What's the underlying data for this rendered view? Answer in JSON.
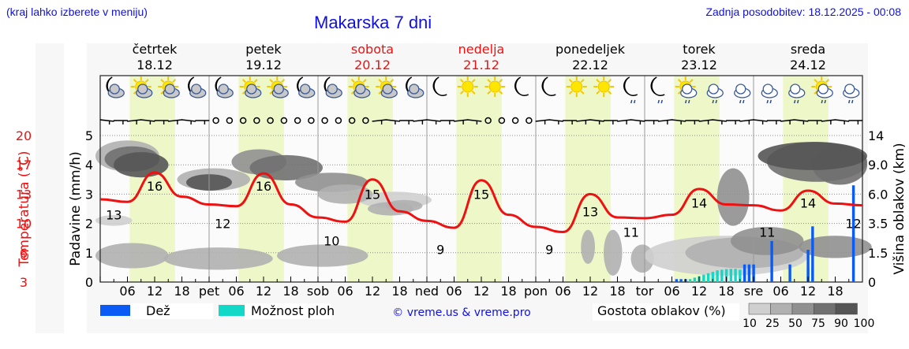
{
  "header": {
    "location_hint": "(kraj lahko izberete v meniju)",
    "title": "Makarska 7 dni",
    "last_update": "Zadnja posodobitev: 18.12.2025 - 00:08"
  },
  "days": [
    {
      "name": "četrtek",
      "date": "18.12",
      "weekend": false,
      "short": ""
    },
    {
      "name": "petek",
      "date": "19.12",
      "weekend": false,
      "short": "pet"
    },
    {
      "name": "sobota",
      "date": "20.12",
      "weekend": true,
      "short": "sob"
    },
    {
      "name": "nedelja",
      "date": "21.12",
      "weekend": true,
      "short": "ned"
    },
    {
      "name": "ponedeljek",
      "date": "22.12",
      "weekend": false,
      "short": "pon"
    },
    {
      "name": "torek",
      "date": "23.12",
      "weekend": false,
      "short": "tor"
    },
    {
      "name": "sreda",
      "date": "24.12",
      "weekend": false,
      "short": "sre"
    }
  ],
  "hour_ticks": [
    "06",
    "12",
    "18"
  ],
  "weather_icons": [
    "moon-cloud",
    "sun-cloud",
    "sun-cloud",
    "moon-cloud",
    "moon-cloud",
    "sun-cloud",
    "sun-cloud",
    "moon-cloud",
    "moon-cloud",
    "sun-cloud",
    "sun-cloud",
    "moon-cloud",
    "moon",
    "sun",
    "sun",
    "moon",
    "moon",
    "sun",
    "sun",
    "moon-rain",
    "moon-rain",
    "sun-cloud-rain",
    "cloud-rain",
    "cloud-rain",
    "cloud-rain",
    "cloud-rain",
    "sun-cloud-rain",
    "cloud-rain"
  ],
  "axes": {
    "left_temp_label": "Temperatura (°C)",
    "left_temp_ticks": [
      "20",
      "17",
      "13",
      "10",
      "6",
      "3"
    ],
    "left_precip_label": "Padavine (mm/h)",
    "left_precip_ticks": [
      "0",
      "1",
      "2",
      "3",
      "4",
      "5"
    ],
    "right_label": "Višina oblakov (km)",
    "right_ticks": [
      "0",
      "1.5",
      "3.5",
      "6.0",
      "9.0",
      "14"
    ]
  },
  "legend": {
    "rain": {
      "label": "Dež",
      "color": "#0a5af5"
    },
    "showers": {
      "label": "Možnost ploh",
      "color": "#12d8c8"
    },
    "copyright": "© vreme.us & vreme.pro",
    "cloud_density_label": "Gostota oblakov (%)",
    "cloud_density_ticks": [
      "10",
      "25",
      "50",
      "75",
      "90",
      "100"
    ],
    "cloud_density_colors": [
      "#cfcfcf",
      "#b0b0b0",
      "#909090",
      "#707070",
      "#555555"
    ]
  },
  "colors": {
    "temperature": "#ee1111",
    "weekend_day": "#ee1111",
    "daylight_band": "#eef7c8",
    "link_blue": "#1010e0"
  },
  "chart_data": {
    "type": "line",
    "title": "Makarska 7 dni",
    "xlabel": "",
    "ylabel": "Temperatura (°C)",
    "ylim_temp": [
      3,
      20
    ],
    "ylim_precip": [
      0,
      5
    ],
    "grid": true,
    "temperature_extremes": [
      {
        "day": "18.12",
        "time": "03",
        "value": 13,
        "type": "min"
      },
      {
        "day": "18.12",
        "time": "12",
        "value": 16,
        "type": "max"
      },
      {
        "day": "19.12",
        "time": "03",
        "value": 12,
        "type": "min"
      },
      {
        "day": "19.12",
        "time": "12",
        "value": 16,
        "type": "max"
      },
      {
        "day": "20.12",
        "time": "03",
        "value": 10,
        "type": "min"
      },
      {
        "day": "20.12",
        "time": "12",
        "value": 15,
        "type": "max"
      },
      {
        "day": "21.12",
        "time": "03",
        "value": 9,
        "type": "min"
      },
      {
        "day": "21.12",
        "time": "12",
        "value": 15,
        "type": "max"
      },
      {
        "day": "22.12",
        "time": "03",
        "value": 9,
        "type": "min"
      },
      {
        "day": "22.12",
        "time": "12",
        "value": 13,
        "type": "max"
      },
      {
        "day": "22.12",
        "time": "21",
        "value": 11,
        "type": "min"
      },
      {
        "day": "23.12",
        "time": "12",
        "value": 14,
        "type": "max"
      },
      {
        "day": "24.12",
        "time": "03",
        "value": 11,
        "type": "min"
      },
      {
        "day": "24.12",
        "time": "12",
        "value": 14,
        "type": "max"
      },
      {
        "day": "24.12",
        "time": "22",
        "value": 12,
        "type": "min"
      }
    ],
    "series": [
      {
        "name": "Temperatura (°C)",
        "x_hours": [
          0,
          6,
          12,
          18,
          24,
          30,
          36,
          42,
          48,
          54,
          60,
          66,
          72,
          78,
          84,
          90,
          96,
          102,
          108,
          114,
          120,
          126,
          132,
          138,
          144,
          150,
          156,
          162,
          168
        ],
        "values": [
          12.6,
          12.3,
          15.7,
          12.9,
          12.0,
          11.8,
          15.6,
          12.0,
          10.5,
          10.0,
          14.9,
          11.2,
          10.1,
          9.3,
          14.8,
          10.8,
          9.4,
          8.8,
          13.2,
          10.5,
          10.4,
          10.8,
          13.8,
          12.0,
          11.9,
          11.3,
          13.6,
          12.1,
          11.9
        ]
      },
      {
        "name": "Dež (mm/h)",
        "points": [
          {
            "x_hours": 127,
            "value": 0.1
          },
          {
            "x_hours": 128,
            "value": 0.1
          },
          {
            "x_hours": 129,
            "value": 0.1
          },
          {
            "x_hours": 142,
            "value": 0.6
          },
          {
            "x_hours": 143,
            "value": 0.6
          },
          {
            "x_hours": 144,
            "value": 0.6
          },
          {
            "x_hours": 148,
            "value": 1.4
          },
          {
            "x_hours": 152,
            "value": 0.6
          },
          {
            "x_hours": 156,
            "value": 1.1
          },
          {
            "x_hours": 157,
            "value": 1.9
          },
          {
            "x_hours": 166,
            "value": 3.3
          }
        ]
      },
      {
        "name": "Možnost ploh",
        "points": [
          {
            "x_hours": 129,
            "value": 0.05
          },
          {
            "x_hours": 130,
            "value": 0.1
          },
          {
            "x_hours": 131,
            "value": 0.15
          },
          {
            "x_hours": 132,
            "value": 0.2
          },
          {
            "x_hours": 133,
            "value": 0.25
          },
          {
            "x_hours": 134,
            "value": 0.3
          },
          {
            "x_hours": 135,
            "value": 0.35
          },
          {
            "x_hours": 136,
            "value": 0.4
          },
          {
            "x_hours": 137,
            "value": 0.42
          },
          {
            "x_hours": 138,
            "value": 0.44
          },
          {
            "x_hours": 139,
            "value": 0.45
          },
          {
            "x_hours": 140,
            "value": 0.45
          },
          {
            "x_hours": 141,
            "value": 0.42
          },
          {
            "x_hours": 142,
            "value": 0.38
          },
          {
            "x_hours": 156,
            "value": 0.5
          },
          {
            "x_hours": 157,
            "value": 0.5
          }
        ]
      }
    ],
    "cloud_height_axis_km": [
      0,
      1.5,
      3.5,
      6.0,
      9.0,
      14
    ]
  }
}
